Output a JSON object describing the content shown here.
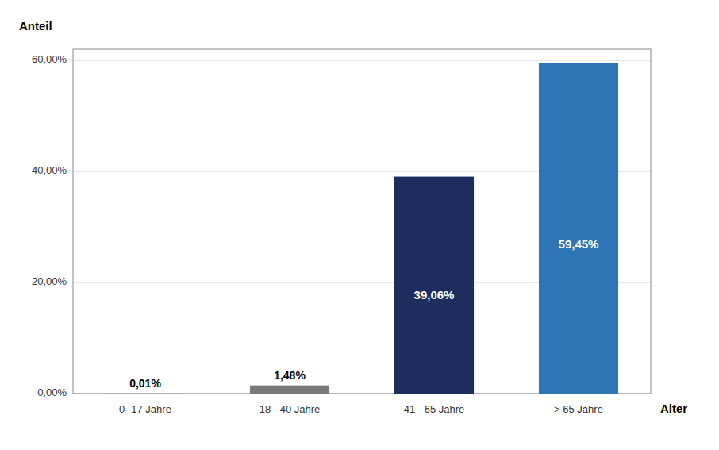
{
  "chart_data": {
    "type": "bar",
    "categories": [
      "0- 17 Jahre",
      "18 - 40 Jahre",
      "41 - 65 Jahre",
      "> 65 Jahre"
    ],
    "values": [
      0.01,
      1.48,
      39.06,
      59.45
    ],
    "value_labels": [
      "0,01%",
      "1,48%",
      "39,06%",
      "59,45%"
    ],
    "colors": [
      "#b22222",
      "#7a7a7a",
      "#1c2d5e",
      "#2e75b6"
    ],
    "y_label": "Anteil",
    "x_label": "Alter",
    "ylim": [
      0,
      62
    ],
    "yticks": [
      {
        "value": 0,
        "label": "0,00%"
      },
      {
        "value": 20,
        "label": "20,00%"
      },
      {
        "value": 40,
        "label": "40,00%"
      },
      {
        "value": 60,
        "label": "60,00%"
      }
    ],
    "grid": true,
    "data_labels": true
  }
}
